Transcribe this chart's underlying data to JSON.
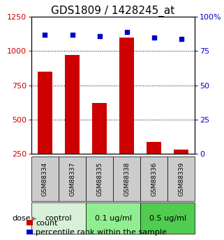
{
  "title": "GDS1809 / 1428245_at",
  "samples": [
    "GSM88334",
    "GSM88337",
    "GSM88335",
    "GSM88338",
    "GSM88336",
    "GSM88339"
  ],
  "counts": [
    850,
    970,
    620,
    1100,
    340,
    285
  ],
  "percentiles": [
    87,
    87,
    86,
    89,
    85,
    84
  ],
  "groups": [
    {
      "label": "control",
      "indices": [
        0,
        1
      ],
      "color": "#d8f0d8"
    },
    {
      "label": "0.1 ug/ml",
      "indices": [
        2,
        3
      ],
      "color": "#90ee90"
    },
    {
      "label": "0.5 ug/ml",
      "indices": [
        4,
        5
      ],
      "color": "#50cc50"
    }
  ],
  "bar_color": "#cc0000",
  "dot_color": "#0000cc",
  "left_ylim": [
    250,
    1250
  ],
  "left_yticks": [
    250,
    500,
    750,
    1000,
    1250
  ],
  "right_ylim": [
    0,
    100
  ],
  "right_yticks": [
    0,
    25,
    50,
    75,
    100
  ],
  "right_yticklabels": [
    "0",
    "25",
    "50",
    "75",
    "100%"
  ],
  "dose_label": "dose",
  "legend_count": "count",
  "legend_percentile": "percentile rank within the sample",
  "bar_width": 0.55,
  "tick_label_color_left": "#cc0000",
  "tick_label_color_right": "#0000cc",
  "grid_color": "#000000",
  "sample_box_color": "#cccccc",
  "title_fontsize": 11,
  "axis_fontsize": 8,
  "legend_fontsize": 8,
  "sample_fontsize": 6.5,
  "group_fontsize": 8
}
